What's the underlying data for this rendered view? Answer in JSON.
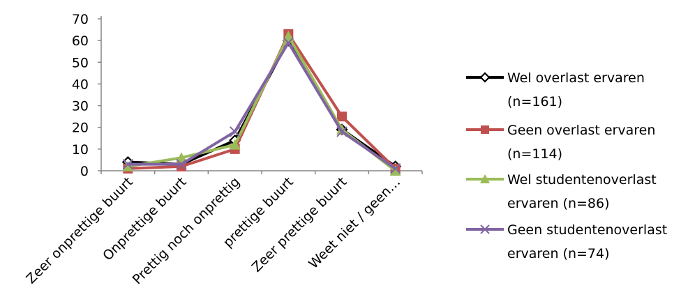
{
  "chart_data": {
    "type": "line",
    "categories": [
      "Zeer onprettige buurt",
      "Onprettige buurt",
      "Prettig noch onprettig",
      "prettige buurt",
      "Zeer prettige buurt",
      "Weet niet / geen…"
    ],
    "ylim": [
      0,
      70
    ],
    "yticks": [
      0,
      10,
      20,
      30,
      40,
      50,
      60,
      70
    ],
    "grid": false,
    "legend_position": "right",
    "series": [
      {
        "name": "Wel overlast ervaren (n=161)",
        "legend_lines": [
          "Wel overlast ervaren",
          "(n=161)"
        ],
        "color": "#000000",
        "marker": "diamond",
        "values": [
          4,
          3,
          14,
          60,
          19,
          2
        ]
      },
      {
        "name": "Geen overlast ervaren (n=114)",
        "legend_lines": [
          "Geen overlast ervaren",
          "(n=114)"
        ],
        "color": "#c0504d",
        "marker": "square",
        "values": [
          1,
          2,
          10,
          63,
          25,
          1
        ]
      },
      {
        "name": "Wel studentenoverlast ervaren (n=86)",
        "legend_lines": [
          "Wel studentenoverlast",
          "ervaren (n=86)"
        ],
        "color": "#9bbb59",
        "marker": "triangle",
        "values": [
          2,
          6,
          12,
          62,
          19,
          0
        ]
      },
      {
        "name": "Geen studentenoverlast ervaren (n=74)",
        "legend_lines": [
          "Geen studentenoverlast",
          "ervaren (n=74)"
        ],
        "color": "#8064a2",
        "marker": "x",
        "values": [
          3,
          3,
          18,
          59,
          18,
          1
        ]
      }
    ]
  }
}
